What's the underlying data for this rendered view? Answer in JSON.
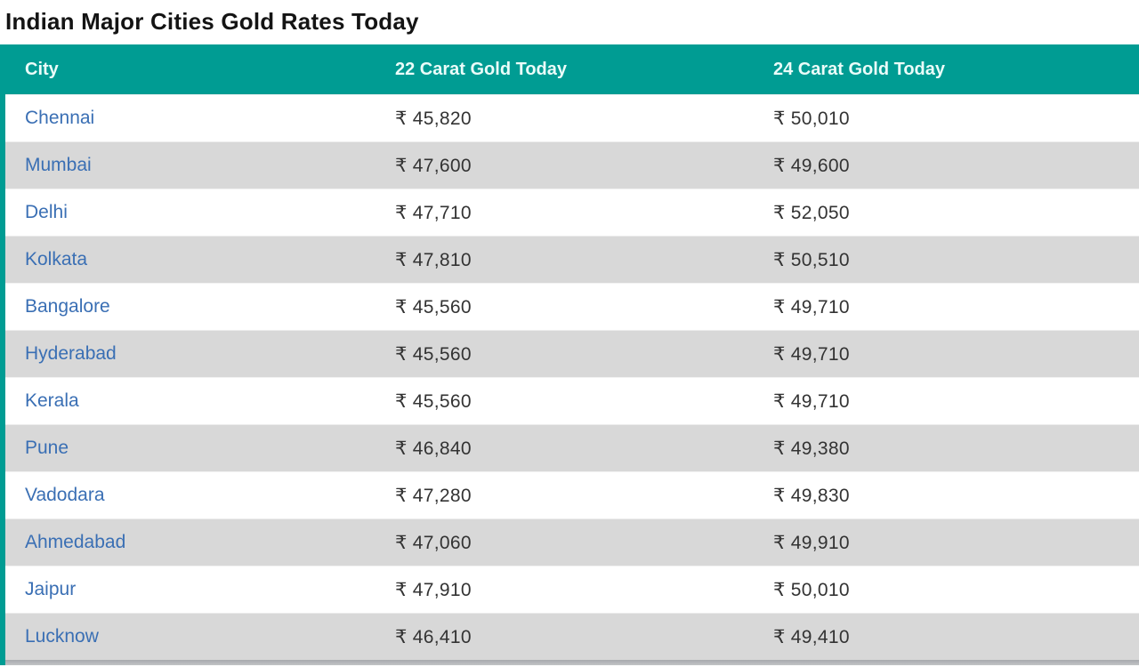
{
  "page": {
    "title": "Indian Major Cities Gold Rates Today"
  },
  "colors": {
    "header_teal": "#009c93",
    "city_link_blue": "#3a6fb4",
    "value_text": "#333333",
    "alt_row_gray": "#d8d8d8",
    "header_text": "#eafcf9"
  },
  "table": {
    "columns": [
      {
        "key": "city",
        "label": "City"
      },
      {
        "key": "carat22",
        "label": "22 Carat Gold Today"
      },
      {
        "key": "carat24",
        "label": "24 Carat Gold Today"
      }
    ],
    "rows": [
      {
        "city": "Chennai",
        "carat22": "₹ 45,820",
        "carat24": "₹ 50,010"
      },
      {
        "city": "Mumbai",
        "carat22": "₹ 47,600",
        "carat24": "₹ 49,600"
      },
      {
        "city": "Delhi",
        "carat22": "₹ 47,710",
        "carat24": "₹ 52,050"
      },
      {
        "city": "Kolkata",
        "carat22": "₹ 47,810",
        "carat24": "₹ 50,510"
      },
      {
        "city": "Bangalore",
        "carat22": "₹ 45,560",
        "carat24": "₹ 49,710"
      },
      {
        "city": "Hyderabad",
        "carat22": "₹ 45,560",
        "carat24": "₹ 49,710"
      },
      {
        "city": "Kerala",
        "carat22": "₹ 45,560",
        "carat24": "₹ 49,710"
      },
      {
        "city": "Pune",
        "carat22": "₹ 46,840",
        "carat24": "₹ 49,380"
      },
      {
        "city": "Vadodara",
        "carat22": "₹ 47,280",
        "carat24": "₹ 49,830"
      },
      {
        "city": "Ahmedabad",
        "carat22": "₹ 47,060",
        "carat24": "₹ 49,910"
      },
      {
        "city": "Jaipur",
        "carat22": "₹ 47,910",
        "carat24": "₹ 50,010"
      },
      {
        "city": "Lucknow",
        "carat22": "₹ 46,410",
        "carat24": "₹ 49,410"
      }
    ]
  }
}
